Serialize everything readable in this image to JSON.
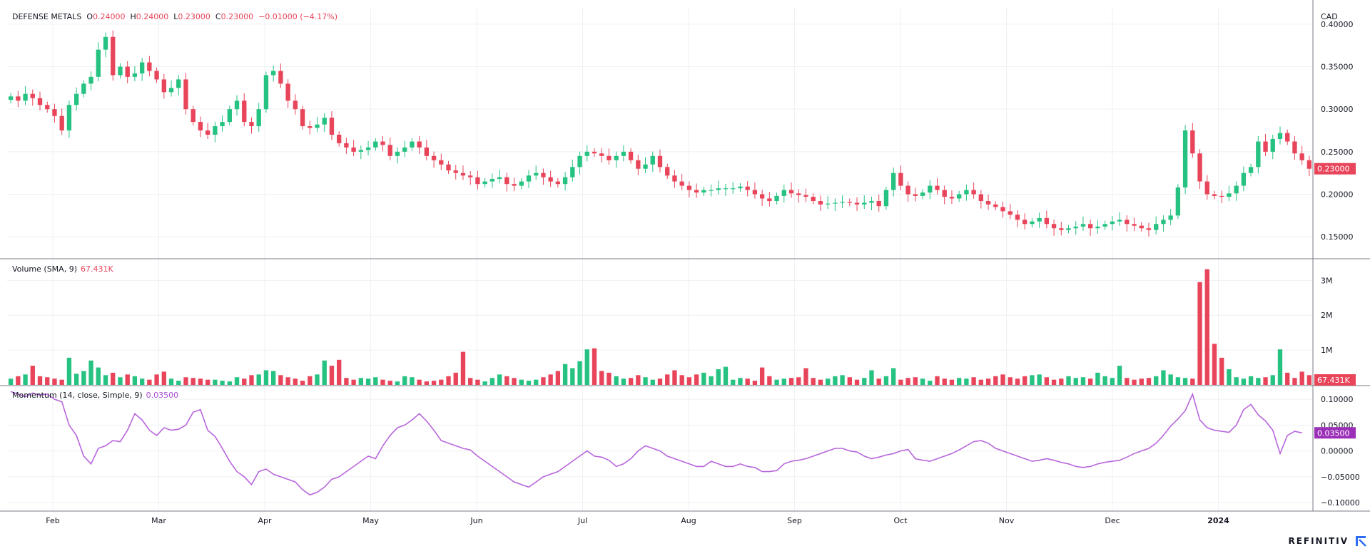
{
  "header": {
    "symbol": "DEFENSE METALS",
    "open_label": "O",
    "open": "0.24000",
    "high_label": "H",
    "high": "0.24000",
    "low_label": "L",
    "low": "0.23000",
    "close_label": "C",
    "close": "0.23000",
    "change": "−0.01000 (−4.17%)"
  },
  "volume_legend": {
    "title": "Volume (SMA, 9)",
    "value": "67.431K"
  },
  "momentum_legend": {
    "title": "Momentum (14, close, Simple, 9)",
    "value": "0.03500"
  },
  "brand": "REFINITIV",
  "colors": {
    "up": "#26c281",
    "down": "#e8445a",
    "momentum": "#b866dc",
    "axis_text": "#131722",
    "grid": "#eef0f3"
  },
  "chart_data": [
    {
      "type": "candlestick",
      "currency_label": "CAD",
      "ylim": [
        0.125,
        0.42
      ],
      "yticks": [
        "0.40000",
        "0.35000",
        "0.30000",
        "0.25000",
        "0.20000",
        "0.15000"
      ],
      "last_price_label": "0.23000",
      "x_ticks": [
        "Feb",
        "Mar",
        "Apr",
        "May",
        "Jun",
        "Jul",
        "Aug",
        "Sep",
        "Oct",
        "Nov",
        "Dec",
        "2024"
      ],
      "close": [
        0.315,
        0.31,
        0.318,
        0.313,
        0.305,
        0.3,
        0.292,
        0.275,
        0.305,
        0.318,
        0.33,
        0.338,
        0.37,
        0.385,
        0.34,
        0.35,
        0.338,
        0.342,
        0.355,
        0.345,
        0.335,
        0.32,
        0.325,
        0.335,
        0.3,
        0.285,
        0.275,
        0.27,
        0.28,
        0.285,
        0.3,
        0.31,
        0.285,
        0.28,
        0.3,
        0.34,
        0.345,
        0.33,
        0.31,
        0.3,
        0.28,
        0.278,
        0.282,
        0.29,
        0.27,
        0.26,
        0.255,
        0.25,
        0.252,
        0.255,
        0.262,
        0.258,
        0.245,
        0.25,
        0.255,
        0.262,
        0.255,
        0.245,
        0.24,
        0.235,
        0.228,
        0.225,
        0.222,
        0.22,
        0.212,
        0.215,
        0.218,
        0.22,
        0.212,
        0.21,
        0.215,
        0.222,
        0.225,
        0.22,
        0.215,
        0.212,
        0.22,
        0.232,
        0.245,
        0.25,
        0.248,
        0.245,
        0.24,
        0.245,
        0.25,
        0.24,
        0.23,
        0.235,
        0.245,
        0.232,
        0.222,
        0.215,
        0.21,
        0.205,
        0.202,
        0.205,
        0.205,
        0.207,
        0.207,
        0.207,
        0.209,
        0.205,
        0.2,
        0.195,
        0.192,
        0.198,
        0.205,
        0.201,
        0.199,
        0.197,
        0.192,
        0.188,
        0.189,
        0.19,
        0.191,
        0.19,
        0.188,
        0.19,
        0.192,
        0.186,
        0.205,
        0.225,
        0.21,
        0.2,
        0.198,
        0.202,
        0.21,
        0.205,
        0.197,
        0.195,
        0.2,
        0.205,
        0.2,
        0.192,
        0.188,
        0.185,
        0.18,
        0.176,
        0.17,
        0.165,
        0.168,
        0.172,
        0.165,
        0.16,
        0.158,
        0.16,
        0.162,
        0.165,
        0.16,
        0.162,
        0.165,
        0.168,
        0.17,
        0.165,
        0.163,
        0.16,
        0.158,
        0.165,
        0.17,
        0.175,
        0.208,
        0.275,
        0.248,
        0.215,
        0.2,
        0.198,
        0.197,
        0.201,
        0.21,
        0.225,
        0.232,
        0.262,
        0.25,
        0.265,
        0.272,
        0.262,
        0.248,
        0.24,
        0.23
      ],
      "volume": {
        "ylim": [
          0,
          3.6
        ],
        "unit": "M",
        "yticks": [
          "3M",
          "2M",
          "1M"
        ],
        "last_label": "67.431K",
        "values": [
          0.18,
          0.25,
          0.3,
          0.55,
          0.25,
          0.22,
          0.18,
          0.15,
          0.78,
          0.32,
          0.4,
          0.7,
          0.5,
          0.28,
          0.35,
          0.22,
          0.3,
          0.25,
          0.18,
          0.15,
          0.3,
          0.38,
          0.18,
          0.12,
          0.22,
          0.2,
          0.18,
          0.15,
          0.15,
          0.12,
          0.1,
          0.22,
          0.18,
          0.28,
          0.3,
          0.42,
          0.4,
          0.28,
          0.22,
          0.18,
          0.12,
          0.25,
          0.3,
          0.7,
          0.55,
          0.72,
          0.2,
          0.15,
          0.2,
          0.18,
          0.22,
          0.15,
          0.12,
          0.1,
          0.25,
          0.22,
          0.15,
          0.1,
          0.12,
          0.15,
          0.25,
          0.35,
          0.95,
          0.2,
          0.15,
          0.1,
          0.2,
          0.3,
          0.25,
          0.2,
          0.15,
          0.12,
          0.15,
          0.22,
          0.3,
          0.4,
          0.6,
          0.48,
          0.68,
          1.02,
          1.05,
          0.4,
          0.35,
          0.25,
          0.18,
          0.2,
          0.28,
          0.22,
          0.15,
          0.18,
          0.3,
          0.42,
          0.28,
          0.22,
          0.3,
          0.35,
          0.25,
          0.45,
          0.52,
          0.15,
          0.2,
          0.18,
          0.12,
          0.5,
          0.25,
          0.15,
          0.18,
          0.2,
          0.22,
          0.48,
          0.2,
          0.15,
          0.18,
          0.25,
          0.28,
          0.22,
          0.15,
          0.2,
          0.42,
          0.18,
          0.25,
          0.48,
          0.15,
          0.2,
          0.22,
          0.18,
          0.12,
          0.25,
          0.18,
          0.15,
          0.2,
          0.18,
          0.22,
          0.15,
          0.18,
          0.25,
          0.3,
          0.22,
          0.18,
          0.25,
          0.28,
          0.3,
          0.22,
          0.15,
          0.18,
          0.25,
          0.2,
          0.22,
          0.18,
          0.35,
          0.25,
          0.2,
          0.55,
          0.2,
          0.15,
          0.18,
          0.2,
          0.25,
          0.42,
          0.3,
          0.22,
          0.2,
          0.18,
          2.95,
          3.32,
          1.18,
          0.78,
          0.45,
          0.22,
          0.18,
          0.25,
          0.2,
          0.22,
          0.28,
          1.02,
          0.35,
          0.2,
          0.38,
          0.28,
          0.15,
          0.12
        ]
      }
    },
    {
      "type": "line",
      "name": "Momentum (14, close, Simple, 9)",
      "ylim": [
        -0.115,
        0.125
      ],
      "yticks": [
        "0.10000",
        "0.05000",
        "0.00000",
        "−0.05000",
        "−0.10000"
      ],
      "last_label": "0.03500",
      "values": [
        0.115,
        0.11,
        0.105,
        0.112,
        0.108,
        0.11,
        0.1,
        0.095,
        0.05,
        0.03,
        -0.01,
        -0.025,
        0.005,
        0.01,
        0.02,
        0.018,
        0.04,
        0.072,
        0.06,
        0.04,
        0.03,
        0.045,
        0.04,
        0.042,
        0.05,
        0.075,
        0.08,
        0.04,
        0.028,
        0.005,
        -0.02,
        -0.04,
        -0.05,
        -0.065,
        -0.04,
        -0.035,
        -0.045,
        -0.05,
        -0.055,
        -0.06,
        -0.075,
        -0.085,
        -0.08,
        -0.07,
        -0.055,
        -0.05,
        -0.04,
        -0.03,
        -0.02,
        -0.01,
        -0.015,
        0.01,
        0.03,
        0.045,
        0.05,
        0.06,
        0.072,
        0.058,
        0.04,
        0.02,
        0.015,
        0.01,
        0.005,
        0.002,
        -0.01,
        -0.02,
        -0.03,
        -0.04,
        -0.05,
        -0.06,
        -0.065,
        -0.07,
        -0.06,
        -0.05,
        -0.045,
        -0.04,
        -0.03,
        -0.02,
        -0.01,
        0.0,
        -0.01,
        -0.012,
        -0.018,
        -0.03,
        -0.025,
        -0.015,
        0.0,
        0.01,
        0.005,
        0.0,
        -0.01,
        -0.015,
        -0.02,
        -0.025,
        -0.03,
        -0.03,
        -0.02,
        -0.025,
        -0.03,
        -0.03,
        -0.025,
        -0.03,
        -0.032,
        -0.04,
        -0.04,
        -0.038,
        -0.025,
        -0.02,
        -0.018,
        -0.015,
        -0.01,
        -0.005,
        0.0,
        0.005,
        0.005,
        0.0,
        -0.002,
        -0.01,
        -0.015,
        -0.012,
        -0.008,
        -0.005,
        0.0,
        0.003,
        -0.015,
        -0.018,
        -0.02,
        -0.015,
        -0.01,
        -0.005,
        0.002,
        0.01,
        0.018,
        0.02,
        0.015,
        0.005,
        0.0,
        -0.005,
        -0.01,
        -0.015,
        -0.02,
        -0.018,
        -0.015,
        -0.018,
        -0.022,
        -0.025,
        -0.03,
        -0.032,
        -0.03,
        -0.025,
        -0.022,
        -0.02,
        -0.018,
        -0.012,
        -0.005,
        0.0,
        0.005,
        0.015,
        0.03,
        0.048,
        0.062,
        0.078,
        0.11,
        0.06,
        0.045,
        0.04,
        0.038,
        0.036,
        0.05,
        0.08,
        0.09,
        0.07,
        0.058,
        0.04,
        -0.005,
        0.03,
        0.038,
        0.035
      ]
    }
  ]
}
